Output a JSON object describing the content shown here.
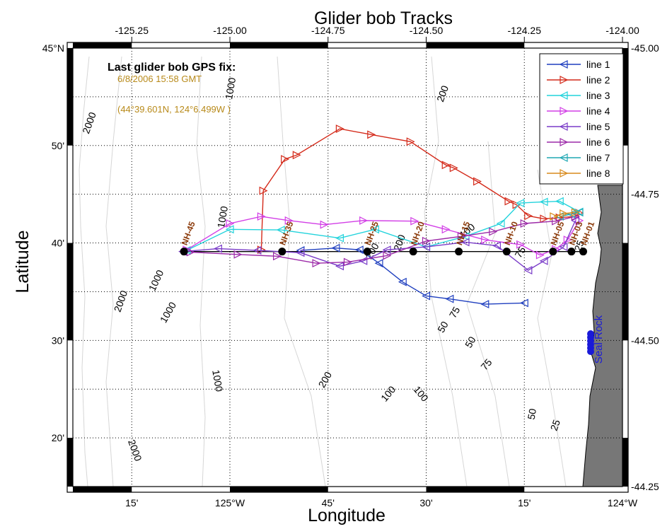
{
  "title": "Glider bob Tracks",
  "xlabel": "Longitude",
  "ylabel": "Latitude",
  "top_ticks": [
    "-125.25",
    "-125.00",
    "-124.75",
    "-124.50",
    "-124.25",
    "-124.00"
  ],
  "right_ticks": [
    "-45.00",
    "-44.75",
    "-44.50",
    "-44.25"
  ],
  "bottom_ticks": [
    {
      "lon": -125.25,
      "label": "15'"
    },
    {
      "lon": -125.0,
      "label": "125°W"
    },
    {
      "lon": -124.75,
      "label": "45'"
    },
    {
      "lon": -124.5,
      "label": "30'"
    },
    {
      "lon": -124.25,
      "label": "15'"
    },
    {
      "lon": -124.0,
      "label": "124°W"
    }
  ],
  "left_ticks": [
    {
      "lat": 45.0,
      "label": "45°N"
    },
    {
      "lat": 44.8333,
      "label": "50'"
    },
    {
      "lat": 44.6667,
      "label": "40'"
    },
    {
      "lat": 44.5,
      "label": "30'"
    },
    {
      "lat": 44.3333,
      "label": "20'"
    }
  ],
  "fix": {
    "heading": "Last glider bob GPS fix:",
    "time": "6/8/2006 15:58 GMT",
    "position": "(44°39.601N, 124°6.499W )"
  },
  "legend": [
    {
      "name": "line 1",
      "color": "#1f3fbf",
      "dir": "left"
    },
    {
      "name": "line 2",
      "color": "#d42a1a",
      "dir": "right"
    },
    {
      "name": "line 3",
      "color": "#22d3dc",
      "dir": "left"
    },
    {
      "name": "line 4",
      "color": "#d23ee6",
      "dir": "right"
    },
    {
      "name": "line 5",
      "color": "#7a3cc8",
      "dir": "left"
    },
    {
      "name": "line 6",
      "color": "#9c2aa8",
      "dir": "right"
    },
    {
      "name": "line 7",
      "color": "#20a8b4",
      "dir": "left"
    },
    {
      "name": "line 8",
      "color": "#d88a1c",
      "dir": "right"
    }
  ],
  "stations": [
    {
      "name": "NH-45",
      "lon": -125.117
    },
    {
      "name": "NH-35",
      "lon": -124.867
    },
    {
      "name": "NH-25",
      "lon": -124.65
    },
    {
      "name": "NH-20",
      "lon": -124.533
    },
    {
      "name": "NH-15",
      "lon": -124.417
    },
    {
      "name": "NH-10",
      "lon": -124.295
    },
    {
      "name": "NH-05",
      "lon": -124.177
    },
    {
      "name": "NH-03",
      "lon": -124.13
    },
    {
      "name": "NH-01",
      "lon": -124.1
    }
  ],
  "station_lat": 44.652,
  "place": "Seal Rock",
  "depth_labels": [
    {
      "text": "1000",
      "lon": -124.99,
      "lat": 44.93,
      "rot": -80
    },
    {
      "text": "200",
      "lon": -124.45,
      "lat": 44.92,
      "rot": -70
    },
    {
      "text": "2000",
      "lon": -125.35,
      "lat": 44.87,
      "rot": -70
    },
    {
      "text": "1000",
      "lon": -125.01,
      "lat": 44.71,
      "rot": -80
    },
    {
      "text": "100",
      "lon": -124.39,
      "lat": 44.683,
      "rot": -40
    },
    {
      "text": "75",
      "lon": -124.253,
      "lat": 44.648,
      "rot": -60
    },
    {
      "text": "1000",
      "lon": -125.18,
      "lat": 44.6,
      "rot": -65
    },
    {
      "text": "2000",
      "lon": -125.27,
      "lat": 44.565,
      "rot": -70
    },
    {
      "text": "1000",
      "lon": -125.15,
      "lat": 44.545,
      "rot": -60
    },
    {
      "text": "75",
      "lon": -124.42,
      "lat": 44.545,
      "rot": -60
    },
    {
      "text": "50",
      "lon": -124.45,
      "lat": 44.52,
      "rot": -60
    },
    {
      "text": "50",
      "lon": -124.38,
      "lat": 44.494,
      "rot": -60
    },
    {
      "text": "75",
      "lon": -124.34,
      "lat": 44.455,
      "rot": -50
    },
    {
      "text": "1000",
      "lon": -125.04,
      "lat": 44.43,
      "rot": 80
    },
    {
      "text": "200",
      "lon": -124.75,
      "lat": 44.43,
      "rot": -60
    },
    {
      "text": "100",
      "lon": -124.59,
      "lat": 44.405,
      "rot": -50
    },
    {
      "text": "100",
      "lon": -124.52,
      "lat": 44.405,
      "rot": 50
    },
    {
      "text": "50",
      "lon": -124.222,
      "lat": 44.373,
      "rot": -80
    },
    {
      "text": "25",
      "lon": -124.163,
      "lat": 44.353,
      "rot": -70
    },
    {
      "text": "2000",
      "lon": -125.25,
      "lat": 44.31,
      "rot": 70
    },
    {
      "text": "200",
      "lon": -124.63,
      "lat": 44.65,
      "rot": -60
    },
    {
      "text": "200",
      "lon": -124.56,
      "lat": 44.665,
      "rot": -70
    },
    {
      "text": "25",
      "lon": -124.102,
      "lat": 44.66,
      "rot": -70
    }
  ],
  "tracks": [
    {
      "legend": 0,
      "points": [
        [
          -124.82,
          44.654
        ],
        [
          -124.73,
          44.658
        ],
        [
          -124.67,
          44.655
        ],
        [
          -124.62,
          44.632
        ],
        [
          -124.56,
          44.6
        ],
        [
          -124.5,
          44.576
        ],
        [
          -124.44,
          44.571
        ],
        [
          -124.35,
          44.562
        ],
        [
          -124.25,
          44.564
        ]
      ]
    },
    {
      "legend": 1,
      "points": [
        [
          -124.92,
          44.655
        ],
        [
          -124.915,
          44.756
        ],
        [
          -124.86,
          44.81
        ],
        [
          -124.83,
          44.817
        ],
        [
          -124.72,
          44.862
        ],
        [
          -124.64,
          44.852
        ],
        [
          -124.54,
          44.84
        ],
        [
          -124.45,
          44.8
        ],
        [
          -124.43,
          44.795
        ],
        [
          -124.37,
          44.772
        ],
        [
          -124.29,
          44.738
        ],
        [
          -124.27,
          44.732
        ],
        [
          -124.24,
          44.713
        ],
        [
          -124.2,
          44.708
        ],
        [
          -124.16,
          44.71
        ],
        [
          -124.12,
          44.712
        ],
        [
          -124.11,
          44.718
        ]
      ]
    },
    {
      "legend": 2,
      "points": [
        [
          -125.11,
          44.654
        ],
        [
          -125.0,
          44.69
        ],
        [
          -124.87,
          44.689
        ],
        [
          -124.72,
          44.675
        ],
        [
          -124.63,
          44.69
        ],
        [
          -124.5,
          44.66
        ],
        [
          -124.4,
          44.678
        ],
        [
          -124.31,
          44.7
        ],
        [
          -124.26,
          44.735
        ],
        [
          -124.2,
          44.737
        ],
        [
          -124.16,
          44.738
        ],
        [
          -124.11,
          44.72
        ]
      ]
    },
    {
      "legend": 3,
      "points": [
        [
          -125.11,
          44.655
        ],
        [
          -125.0,
          44.7
        ],
        [
          -124.92,
          44.712
        ],
        [
          -124.85,
          44.705
        ],
        [
          -124.76,
          44.698
        ],
        [
          -124.66,
          44.705
        ],
        [
          -124.53,
          44.704
        ],
        [
          -124.45,
          44.69
        ],
        [
          -124.35,
          44.672
        ],
        [
          -124.26,
          44.664
        ],
        [
          -124.21,
          44.646
        ],
        [
          -124.17,
          44.656
        ],
        [
          -124.14,
          44.672
        ],
        [
          -124.11,
          44.705
        ]
      ]
    },
    {
      "legend": 4,
      "points": [
        [
          -125.12,
          44.652
        ],
        [
          -125.03,
          44.657
        ],
        [
          -124.93,
          44.654
        ],
        [
          -124.82,
          44.65
        ],
        [
          -124.72,
          44.627
        ],
        [
          -124.66,
          44.636
        ],
        [
          -124.6,
          44.655
        ],
        [
          -124.5,
          44.66
        ],
        [
          -124.4,
          44.668
        ],
        [
          -124.32,
          44.662
        ],
        [
          -124.24,
          44.62
        ],
        [
          -124.2,
          44.636
        ],
        [
          -124.15,
          44.66
        ],
        [
          -124.12,
          44.705
        ]
      ]
    },
    {
      "legend": 5,
      "points": [
        [
          -125.1,
          44.651
        ],
        [
          -124.98,
          44.647
        ],
        [
          -124.88,
          44.644
        ],
        [
          -124.78,
          44.632
        ],
        [
          -124.7,
          44.634
        ],
        [
          -124.6,
          44.645
        ],
        [
          -124.5,
          44.67
        ],
        [
          -124.41,
          44.678
        ],
        [
          -124.33,
          44.686
        ],
        [
          -124.25,
          44.7
        ],
        [
          -124.17,
          44.704
        ],
        [
          -124.12,
          44.712
        ]
      ]
    },
    {
      "legend": 6,
      "points": [
        [
          -124.16,
          44.712
        ],
        [
          -124.13,
          44.716
        ],
        [
          -124.11,
          44.719
        ]
      ]
    },
    {
      "legend": 7,
      "points": [
        [
          -124.175,
          44.712
        ],
        [
          -124.15,
          44.717
        ],
        [
          -124.12,
          44.719
        ]
      ]
    }
  ]
}
